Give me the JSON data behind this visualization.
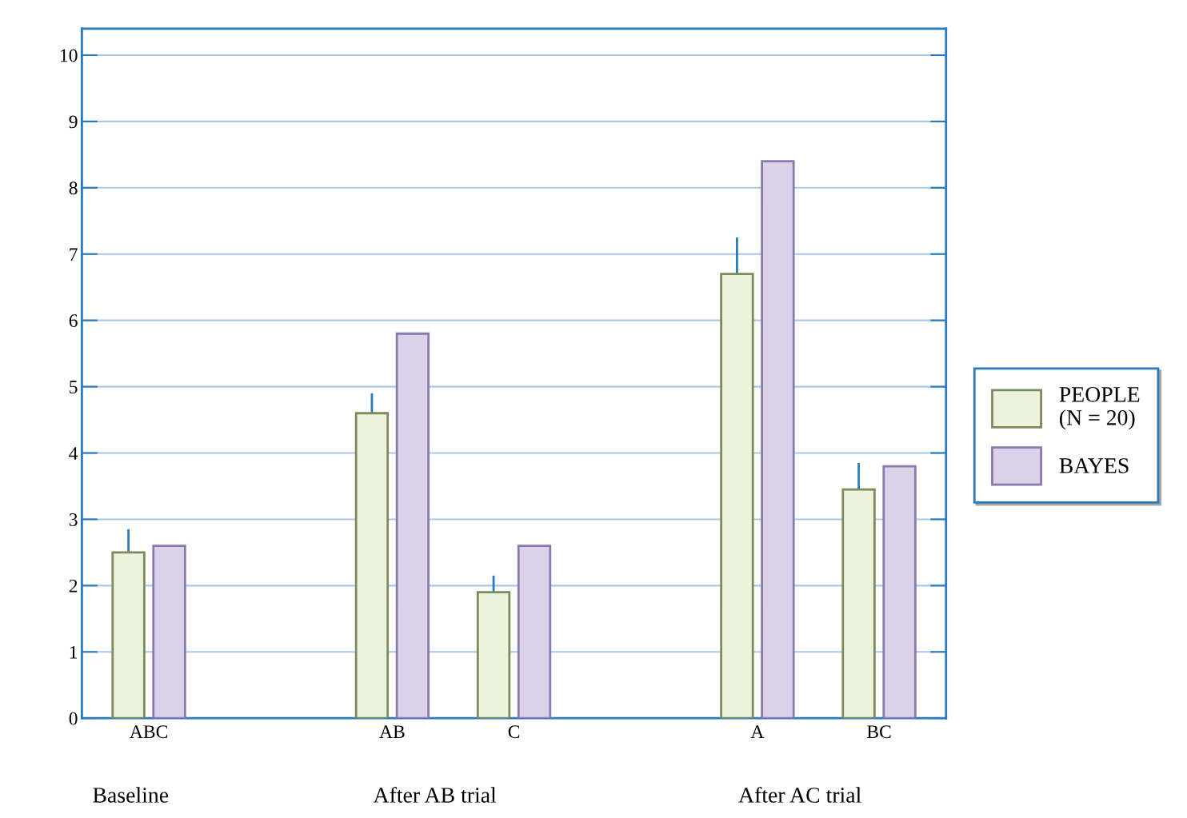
{
  "chart_data": {
    "type": "bar",
    "categories": [
      "ABC",
      null,
      "AB",
      "C",
      null,
      "A",
      "BC"
    ],
    "series": [
      {
        "name": "PEOPLE\n(N = 20)",
        "color": "#edf2dc",
        "values": [
          2.5,
          null,
          4.6,
          1.9,
          null,
          6.7,
          3.45
        ],
        "errors": [
          0.35,
          null,
          0.3,
          0.25,
          null,
          0.55,
          0.4
        ]
      },
      {
        "name": "BAYES",
        "color": "#dbd2e7",
        "values": [
          2.6,
          null,
          5.8,
          2.6,
          null,
          8.4,
          3.8
        ]
      }
    ],
    "annotations": [
      "Baseline",
      "After AB trial",
      "After AC trial"
    ],
    "ylim": [
      0,
      10.4
    ],
    "yticks": [
      0,
      1,
      2,
      3,
      4,
      5,
      6,
      7,
      8,
      9,
      10
    ],
    "grid": "y",
    "legend": "right"
  }
}
